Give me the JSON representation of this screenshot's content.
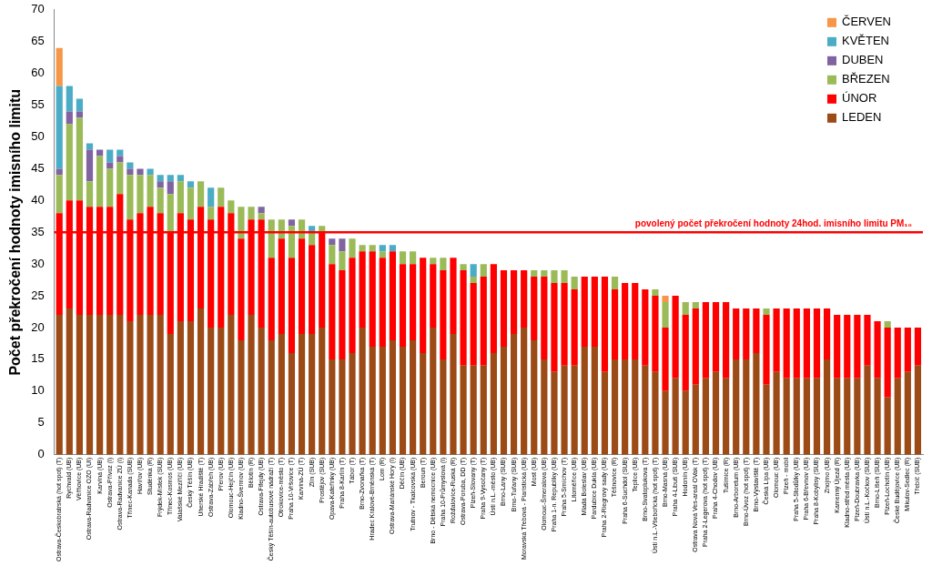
{
  "chart_data": {
    "type": "bar",
    "stacked": true,
    "grid": false,
    "legend": "upper right",
    "y_label": "Počet překročení hodnoty imisního limitu",
    "ylim": [
      0,
      70
    ],
    "yticks": [
      0,
      5,
      10,
      15,
      20,
      25,
      30,
      35,
      40,
      45,
      50,
      55,
      60,
      65,
      70
    ],
    "annotations": [
      {
        "y": 35,
        "text": "povolený počet překročení hodnoty 24hod. imisního limitu PM₁₀",
        "color": "#ff0000"
      }
    ],
    "categories": [
      "Ostrava-Českobratrská (hot spot) (T)",
      "Rychvald (UB)",
      "Věřňovice (UB)",
      "Ostrava-Radvanice OZO (UI)",
      "Karviná (UB)",
      "Ostrava-Přívoz (I)",
      "Ostrava-Radvanice ZÚ (I)",
      "Třinec-Kanada (SUB)",
      "Havířov (UB)",
      "Studénka (R)",
      "Frýdek-Místek (SUB)",
      "Třinec-Kosmos (UB)",
      "Valašské Meziříčí (UB)",
      "Český Těšín (UB)",
      "Uherské Hradiště (T)",
      "Ostrava-Zábřeh (UB)",
      "Přerov (UB)",
      "Olomouc-Hejčín (UB)",
      "Kladno-Švermov (UB)",
      "Bělotín (R)",
      "Ostrava-Fifejdy (UB)",
      "Český Těšín-autobusové nádraží (T)",
      "Otrokovice-město (T)",
      "Praha 10-Vršovice (T)",
      "Karviná-ZÚ (T)",
      "Zlín (SUB)",
      "Prostějov (SUB)",
      "Opava-Kateřinky (UB)",
      "Praha 8-Karlín (T)",
      "Tábor (T)",
      "Brno-Zvonařka (T)",
      "Hradec Králové-Brněnská (T)",
      "Lom (R)",
      "Ostrava-Mariánské Hory (I)",
      "Děčín (UB)",
      "Trutnov - Tkalcovská (UB)",
      "Beroun (T)",
      "Brno - Dětská nemocnice (UB)",
      "Praha 10-Průmyslová (I)",
      "Rožďalovice-Ruská (R)",
      "Ostrava-Poruba, DD (T)",
      "Plzeň-Slovany (T)",
      "Praha 9-Vysočany (T)",
      "Ústí n.L.-město (UB)",
      "Brno-Lány (SUB)",
      "Brno-Tuřany (SUB)",
      "Moravská Třebová - Piaristická (UB)",
      "Most (UB)",
      "Olomouc-Šmeralova (UB)",
      "Praha 1-n. Republiky (UB)",
      "Praha 5-Smíchov (T)",
      "Litoměřice (UB)",
      "Mladá Boleslav (UB)",
      "Pardubice Dukla (UB)",
      "Praha 2-Riegrovy sady (UB)",
      "Těšnovice (R)",
      "Praha 6-Suchdol (SUB)",
      "Teplice (UB)",
      "Brno-Svatoplukova (T)",
      "Ústí n.L.-Všebořická (hot spot) (T)",
      "Brno-Masná (UB)",
      "Praha 4-Libuš (SUB)",
      "Hodonín (UB)",
      "Ostrava Nová Ves-areál OVak (T)",
      "Praha 2-Legerova (hot spot) (T)",
      "Praha 4-Chodov (UB)",
      "Tušimice (R)",
      "Brno-Arboretum (UB)",
      "Brno-Úvoz (hot spot) (T)",
      "Brno-Výstaviště (T)",
      "Česká Lípa (UB)",
      "Olomouc (UB)",
      "Plzeň - mobil",
      "Praha 5-Stodůlky (UB)",
      "Praha 6-Břevnov (UB)",
      "Praha 8-Kobylisy (SUB)",
      "Znojmo (UB)",
      "Kamenný Újezd (R)",
      "Kladno-střed města (UB)",
      "Plzeň-Doubravka (UB)",
      "Ústí n.L.-Kočkov (SUB)",
      "Brno-Líšeň (SUB)",
      "Plzeň-Lochotín (UB)",
      "České Budějovice (UB)",
      "Mikulov-Sedlec (R)",
      "Třebíč (SUB)"
    ],
    "series": [
      {
        "name": "LEDEN",
        "color": "#9c4a16",
        "values": [
          22,
          23,
          22,
          22,
          22,
          22,
          22,
          21,
          22,
          22,
          22,
          19,
          21,
          21,
          23,
          20,
          20,
          22,
          18,
          22,
          20,
          18,
          19,
          16,
          19,
          19,
          20,
          15,
          15,
          16,
          20,
          17,
          17,
          18,
          17,
          18,
          16,
          20,
          15,
          19,
          14,
          14,
          14,
          16,
          17,
          19,
          20,
          18,
          15,
          13,
          14,
          14,
          17,
          17,
          13,
          15,
          15,
          15,
          14,
          13,
          10,
          12,
          10,
          11,
          12,
          13,
          12,
          15,
          15,
          16,
          11,
          13,
          12,
          12,
          12,
          12,
          15,
          12,
          12,
          12,
          14,
          12,
          9,
          12,
          13,
          14
        ]
      },
      {
        "name": "ÚNOR",
        "color": "#ff0000",
        "values": [
          16,
          17,
          18,
          17,
          17,
          17,
          19,
          16,
          16,
          17,
          16,
          16,
          17,
          16,
          16,
          17,
          19,
          16,
          16,
          15,
          17,
          13,
          15,
          15,
          15,
          14,
          15,
          15,
          14,
          15,
          12,
          15,
          14,
          14,
          13,
          12,
          15,
          10,
          14,
          12,
          15,
          13,
          14,
          14,
          12,
          10,
          9,
          10,
          13,
          14,
          13,
          12,
          11,
          11,
          15,
          11,
          12,
          12,
          12,
          12,
          10,
          13,
          12,
          12,
          12,
          11,
          12,
          8,
          8,
          7,
          11,
          10,
          11,
          11,
          11,
          11,
          8,
          10,
          10,
          10,
          8,
          9,
          11,
          8,
          7,
          6
        ]
      },
      {
        "name": "BŘEZEN",
        "color": "#9bbb59",
        "values": [
          6,
          12,
          13,
          4,
          8,
          6,
          5,
          7,
          6,
          5,
          4,
          6,
          5,
          5,
          4,
          2,
          3,
          2,
          5,
          2,
          1,
          6,
          3,
          5,
          3,
          2,
          1,
          3,
          3,
          3,
          1,
          1,
          1,
          0,
          2,
          2,
          0,
          1,
          2,
          0,
          1,
          1,
          2,
          0,
          0,
          0,
          0,
          1,
          1,
          2,
          2,
          2,
          0,
          0,
          0,
          2,
          0,
          0,
          0,
          1,
          4,
          0,
          2,
          1,
          0,
          0,
          0,
          0,
          0,
          0,
          1,
          0,
          0,
          0,
          0,
          0,
          0,
          0,
          0,
          0,
          0,
          0,
          1,
          0,
          0,
          0
        ]
      },
      {
        "name": "DUBEN",
        "color": "#8064a2",
        "values": [
          1,
          2,
          1,
          5,
          1,
          1,
          1,
          1,
          1,
          0,
          1,
          2,
          0,
          0,
          0,
          0,
          0,
          0,
          0,
          0,
          1,
          0,
          0,
          1,
          0,
          0,
          0,
          1,
          2,
          0,
          0,
          0,
          0,
          0,
          0,
          0,
          0,
          0,
          0,
          0,
          0,
          0,
          0,
          0,
          0,
          0,
          0,
          0,
          0,
          0,
          0,
          0,
          0,
          0,
          0,
          0,
          0,
          0,
          0,
          0,
          0,
          0,
          0,
          0,
          0,
          0,
          0,
          0,
          0,
          0,
          0,
          0,
          0,
          0,
          0,
          0,
          0,
          0,
          0,
          0,
          0,
          0,
          0,
          0,
          0,
          0
        ]
      },
      {
        "name": "KVĚTEN",
        "color": "#4bacc6",
        "values": [
          13,
          4,
          2,
          1,
          0,
          2,
          1,
          1,
          0,
          1,
          1,
          1,
          1,
          1,
          0,
          3,
          0,
          0,
          0,
          0,
          0,
          0,
          0,
          0,
          0,
          1,
          0,
          0,
          0,
          0,
          0,
          0,
          1,
          1,
          0,
          0,
          0,
          0,
          0,
          0,
          0,
          2,
          0,
          0,
          0,
          0,
          0,
          0,
          0,
          0,
          0,
          0,
          0,
          0,
          0,
          0,
          0,
          0,
          0,
          0,
          0,
          0,
          0,
          0,
          0,
          0,
          0,
          0,
          0,
          0,
          0,
          0,
          0,
          0,
          0,
          0,
          0,
          0,
          0,
          0,
          0,
          0,
          0,
          0,
          0,
          0
        ]
      },
      {
        "name": "ČERVEN",
        "color": "#f79646",
        "values": [
          6,
          0,
          0,
          0,
          0,
          0,
          0,
          0,
          0,
          0,
          0,
          0,
          0,
          0,
          0,
          0,
          0,
          0,
          0,
          0,
          0,
          0,
          0,
          0,
          0,
          0,
          0,
          0,
          0,
          0,
          0,
          0,
          0,
          0,
          0,
          0,
          0,
          0,
          0,
          0,
          0,
          0,
          0,
          0,
          0,
          0,
          0,
          0,
          0,
          0,
          0,
          0,
          0,
          0,
          0,
          0,
          0,
          0,
          0,
          0,
          1,
          0,
          0,
          0,
          0,
          0,
          0,
          0,
          0,
          0,
          0,
          0,
          0,
          0,
          0,
          0,
          0,
          0,
          0,
          0,
          0,
          0,
          0,
          0,
          0,
          0
        ]
      }
    ]
  }
}
